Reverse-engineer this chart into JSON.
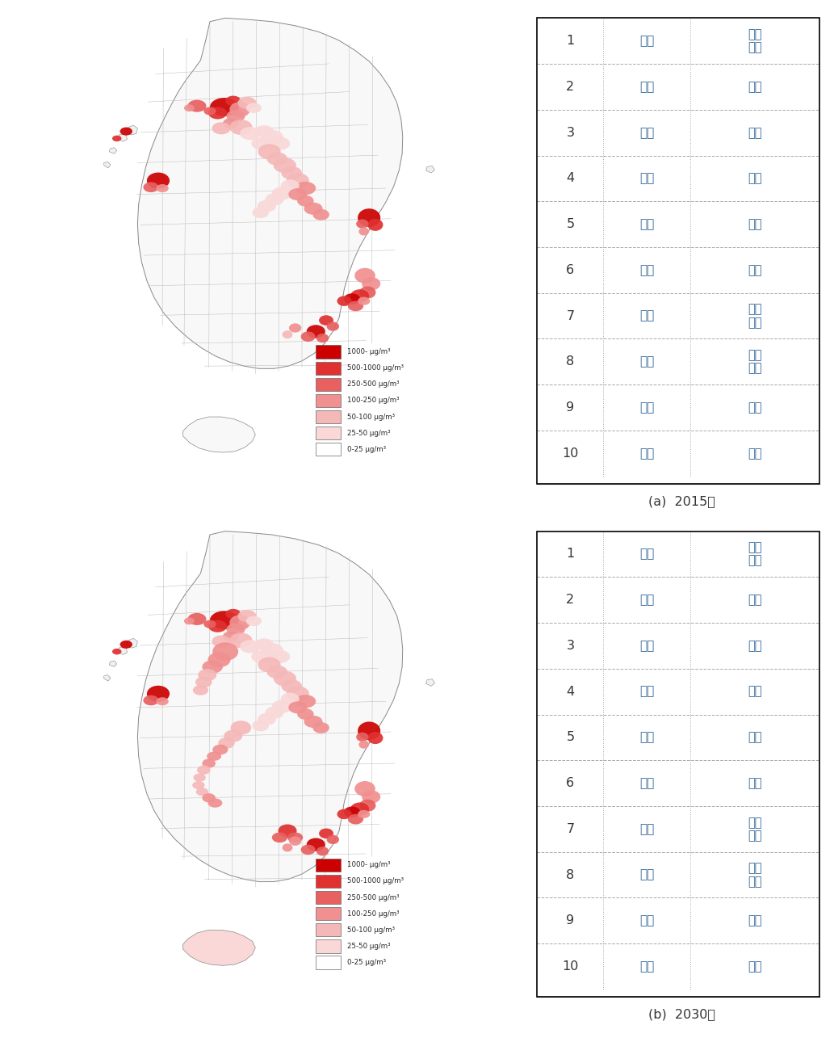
{
  "figure_width": 10.33,
  "figure_height": 12.9,
  "background_color": "#ffffff",
  "panel_a_label": "(a)  2015년",
  "panel_b_label": "(b)  2030년",
  "legend_entries": [
    {
      "label": "1000- μg/m³",
      "color": "#cc0000"
    },
    {
      "label": "500-1000 μg/m³",
      "color": "#e03030"
    },
    {
      "label": "250-500 μg/m³",
      "color": "#e86060"
    },
    {
      "label": "100-250 μg/m³",
      "color": "#f09090"
    },
    {
      "label": "50-100 μg/m³",
      "color": "#f5b8b8"
    },
    {
      "label": "25-50 μg/m³",
      "color": "#fad8d8"
    },
    {
      "label": "0-25 μg/m³",
      "color": "#ffffff"
    }
  ],
  "table_rows": [
    [
      "1",
      "경북",
      "포항\n남구"
    ],
    [
      "2",
      "부산",
      "동구"
    ],
    [
      "3",
      "부산",
      "서구"
    ],
    [
      "4",
      "충남",
      "당진"
    ],
    [
      "5",
      "전남",
      "광양"
    ],
    [
      "6",
      "인천",
      "동구"
    ],
    [
      "7",
      "경남",
      "사원\n진해"
    ],
    [
      "8",
      "경남",
      "사원\n성산"
    ],
    [
      "9",
      "울산",
      "남구"
    ],
    [
      "10",
      "부산",
      "사하"
    ]
  ],
  "table_text_color": "#336699",
  "table_border_color": "#aaaaaa",
  "table_number_color": "#333333"
}
